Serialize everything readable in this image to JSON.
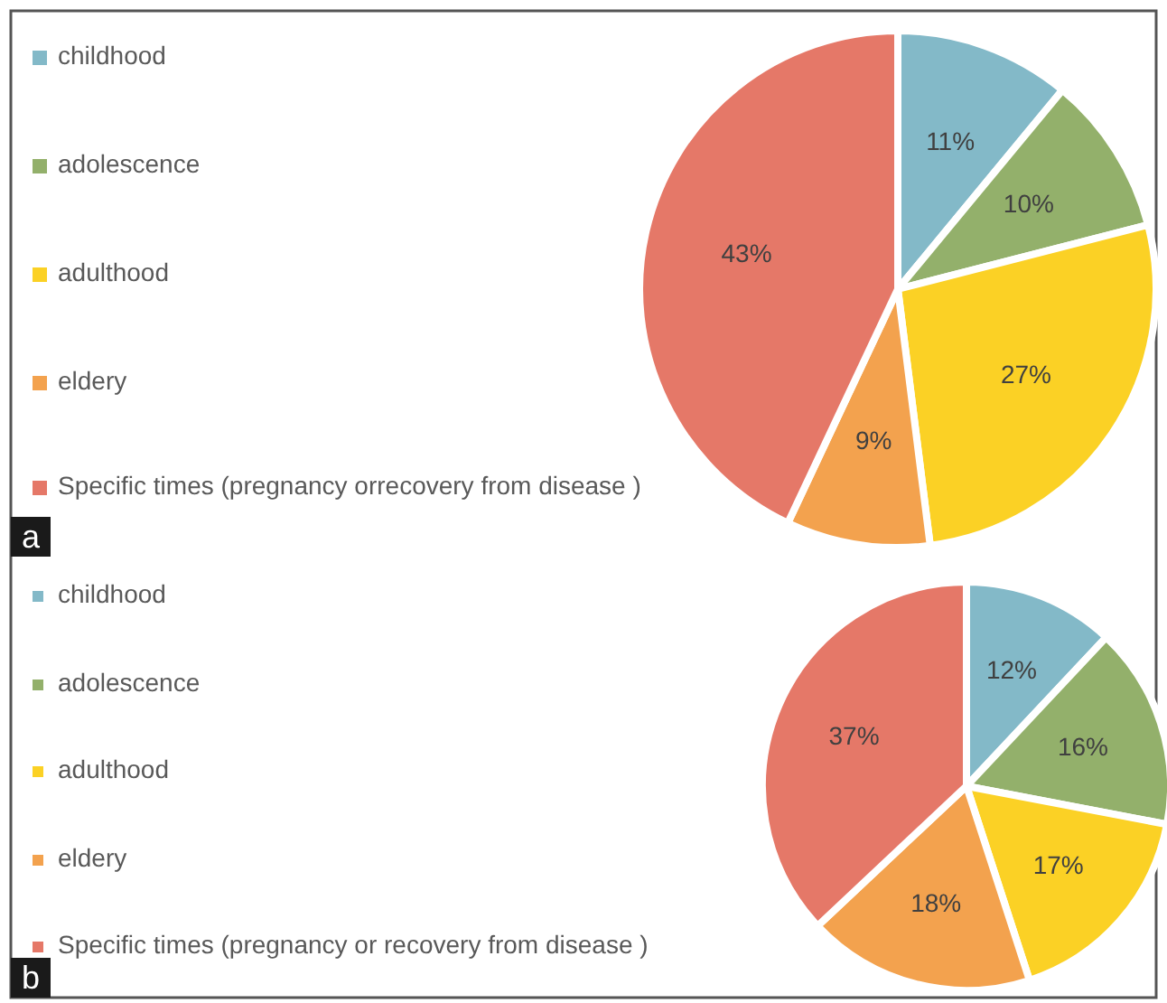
{
  "chart_data": [
    {
      "type": "pie",
      "categories": [
        "childhood",
        "adolescence",
        "adulthood",
        "eldery",
        "Specific times (pregnancy orrecovery from disease )"
      ],
      "values": [
        11,
        10,
        27,
        9,
        43
      ],
      "colors": [
        "#83b9c8",
        "#93b06b",
        "#fbd125",
        "#f3a24e",
        "#e57868"
      ],
      "value_labels": [
        "11%",
        "10%",
        "27%",
        "9%",
        "43%"
      ],
      "legend": "left",
      "annotations": [
        "a"
      ]
    },
    {
      "type": "pie",
      "categories": [
        "childhood",
        "adolescence",
        "adulthood",
        "eldery",
        "Specific times (pregnancy or recovery from disease )"
      ],
      "values": [
        12,
        16,
        17,
        18,
        37
      ],
      "colors": [
        "#83b9c8",
        "#93b06b",
        "#fbd125",
        "#f3a24e",
        "#e57868"
      ],
      "value_labels": [
        "12%",
        "16%",
        "17%",
        "18%",
        "37%"
      ],
      "legend": "left",
      "annotations": [
        "b"
      ]
    }
  ]
}
